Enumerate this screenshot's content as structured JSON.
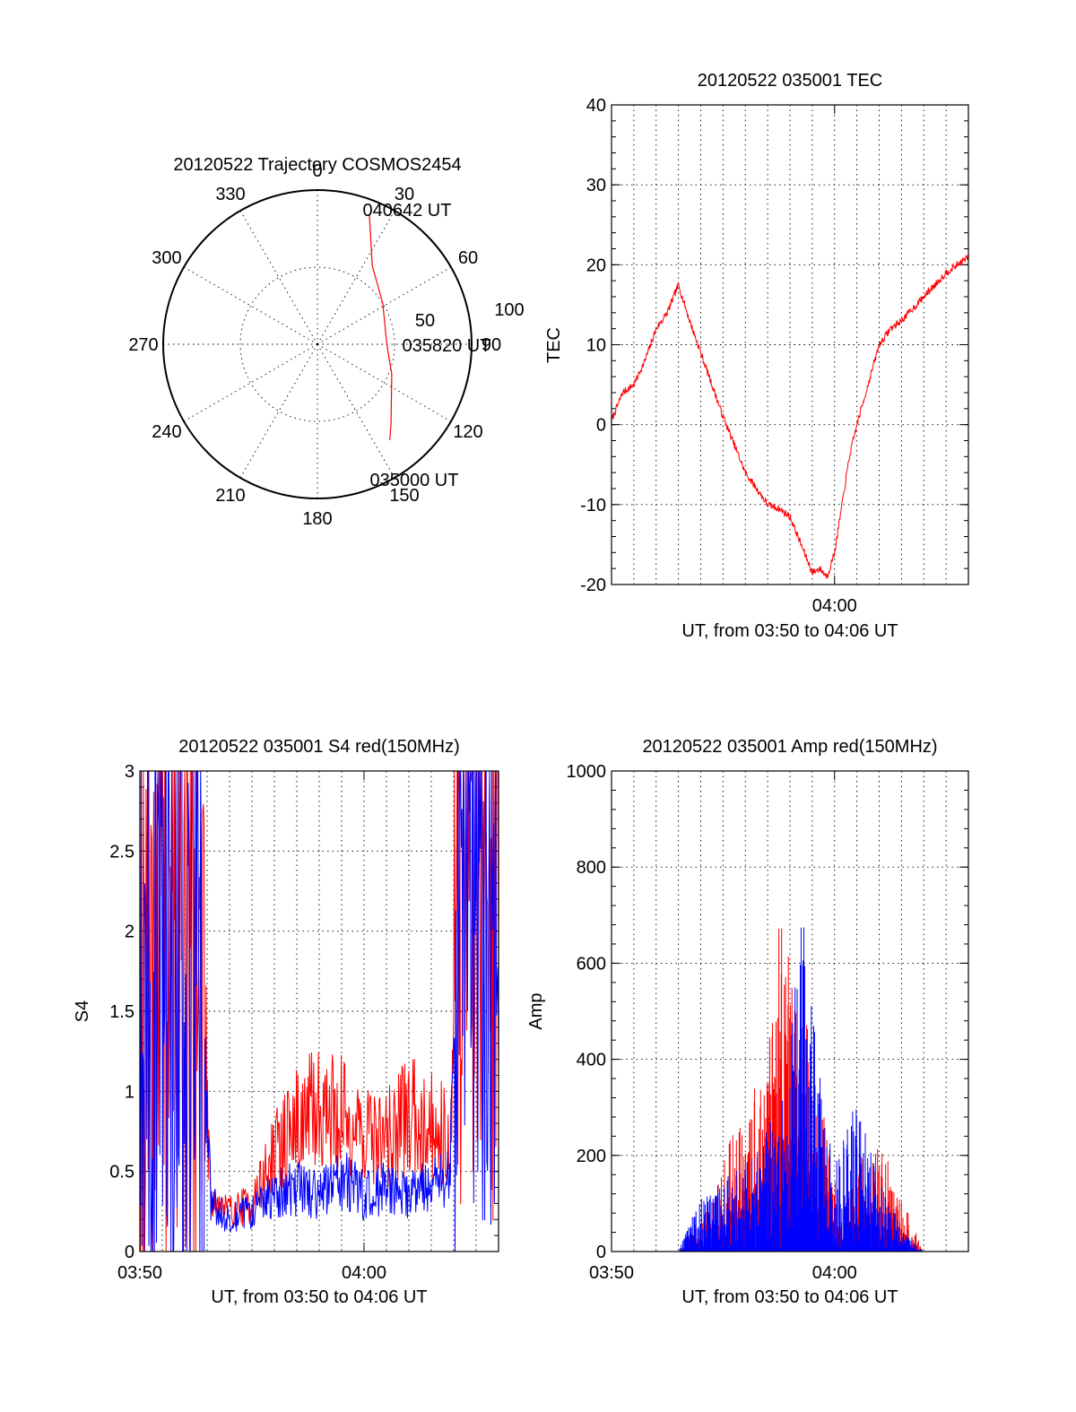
{
  "chart_data": [
    {
      "id": "polar",
      "type": "polar",
      "title": "20120522 Trajectory COSMOS2454",
      "azimuth_labels": [
        "0",
        "30",
        "60",
        "90",
        "120",
        "150",
        "180",
        "210",
        "240",
        "270",
        "300",
        "330"
      ],
      "radial_labels": [
        "50",
        "100"
      ],
      "rmax": 100,
      "track_labels": [
        "040642 UT",
        "035820 UT",
        "035000 UT"
      ],
      "track": [
        [
          22,
          90
        ],
        [
          35,
          62
        ],
        [
          58,
          50
        ],
        [
          90,
          45
        ],
        [
          112,
          52
        ],
        [
          137,
          70
        ],
        [
          143,
          78
        ]
      ],
      "color": "#ff0000"
    },
    {
      "id": "tec",
      "type": "line",
      "title": "20120522 035001 TEC",
      "xlabel": "UT, from 03:50 to 04:06 UT",
      "ylabel": "TEC",
      "xrange": [
        "03:50",
        "04:06"
      ],
      "ylim": [
        -20,
        40
      ],
      "yticks": [
        "-20",
        "-10",
        "0",
        "10",
        "20",
        "30",
        "40"
      ],
      "xticks": [
        "04:00"
      ],
      "series": [
        {
          "color": "#ff0000",
          "x": [
            "03:50",
            "03:50:30",
            "03:51",
            "03:51:30",
            "03:52",
            "03:52:30",
            "03:53",
            "03:53:30",
            "03:54",
            "03:55",
            "03:56",
            "03:57",
            "03:57:30",
            "03:58",
            "03:58:30",
            "03:59",
            "03:59:20",
            "03:59:40",
            "04:00",
            "04:00:20",
            "04:00:40",
            "04:01",
            "04:01:30",
            "04:02",
            "04:02:30",
            "04:03",
            "04:04",
            "04:05",
            "04:06"
          ],
          "y": [
            0.5,
            4,
            5,
            8,
            12,
            14,
            17.5,
            13,
            9,
            1,
            -6,
            -10,
            -10.5,
            -11.5,
            -15,
            -18.5,
            -18,
            -19,
            -16,
            -10,
            -4,
            0,
            5,
            10,
            12,
            13,
            16,
            19,
            21
          ]
        }
      ]
    },
    {
      "id": "s4",
      "type": "line",
      "title": "20120522 035001 S4 red(150MHz)",
      "xlabel": "UT, from 03:50 to 04:06 UT",
      "ylabel": "S4",
      "xrange": [
        "03:50",
        "04:06"
      ],
      "ylim": [
        0,
        3
      ],
      "yticks": [
        "0",
        "0.5",
        "1",
        "1.5",
        "2",
        "2.5",
        "3"
      ],
      "xticks": [
        "03:50",
        "04:00"
      ],
      "series": [
        {
          "color": "#ff0000",
          "x": [
            "03:50",
            "03:51",
            "03:52",
            "03:52:50",
            "03:53:10",
            "03:54",
            "03:55",
            "03:56",
            "03:57",
            "03:58",
            "03:59",
            "04:00",
            "04:01",
            "04:02",
            "04:03",
            "04:03:50",
            "04:04:20",
            "04:05",
            "04:06"
          ],
          "y": [
            2.0,
            2.2,
            2.0,
            1.6,
            0.35,
            0.25,
            0.3,
            0.6,
            0.8,
            0.9,
            0.85,
            0.75,
            0.7,
            0.85,
            0.8,
            0.7,
            2.6,
            2.7,
            2.5
          ]
        },
        {
          "color": "#0000ff",
          "x": [
            "03:50",
            "03:51",
            "03:52",
            "03:52:50",
            "03:53:10",
            "03:54",
            "03:55",
            "03:56",
            "03:57",
            "03:58",
            "03:59",
            "04:00",
            "04:01",
            "04:02",
            "04:03",
            "04:03:50",
            "04:04:20",
            "04:05",
            "04:06"
          ],
          "y": [
            1.9,
            2.0,
            1.8,
            1.5,
            0.3,
            0.2,
            0.25,
            0.35,
            0.4,
            0.35,
            0.45,
            0.35,
            0.4,
            0.35,
            0.4,
            0.45,
            2.6,
            2.6,
            2.4
          ]
        }
      ]
    },
    {
      "id": "amp",
      "type": "line",
      "title": "20120522 035001 Amp red(150MHz)",
      "xlabel": "UT, from 03:50 to 04:06 UT",
      "ylabel": "Amp",
      "xrange": [
        "03:50",
        "04:06"
      ],
      "ylim": [
        0,
        1000
      ],
      "yticks": [
        "0",
        "200",
        "400",
        "600",
        "800",
        "1000"
      ],
      "xticks": [
        "03:50",
        "04:00"
      ],
      "series": [
        {
          "color": "#ff0000",
          "x": [
            "03:50",
            "03:53",
            "03:53:30",
            "03:54",
            "03:55",
            "03:56",
            "03:57",
            "03:57:30",
            "03:58",
            "03:58:30",
            "03:59",
            "03:59:30",
            "04:00",
            "04:00:30",
            "04:01",
            "04:02",
            "04:03",
            "04:03:30",
            "04:04",
            "04:06"
          ],
          "y": [
            0,
            0,
            30,
            50,
            200,
            300,
            420,
            700,
            640,
            500,
            450,
            300,
            150,
            100,
            200,
            240,
            110,
            60,
            0,
            0
          ]
        },
        {
          "color": "#0000ff",
          "x": [
            "03:50",
            "03:53",
            "03:53:30",
            "03:54",
            "03:55",
            "03:56",
            "03:57",
            "03:57:30",
            "03:58",
            "03:58:30",
            "03:59",
            "03:59:30",
            "04:00",
            "04:00:30",
            "04:01",
            "04:02",
            "04:03",
            "04:03:30",
            "04:04",
            "04:06"
          ],
          "y": [
            0,
            0,
            60,
            110,
            150,
            190,
            260,
            300,
            420,
            730,
            560,
            300,
            180,
            320,
            310,
            150,
            60,
            20,
            0,
            0
          ]
        }
      ]
    }
  ]
}
